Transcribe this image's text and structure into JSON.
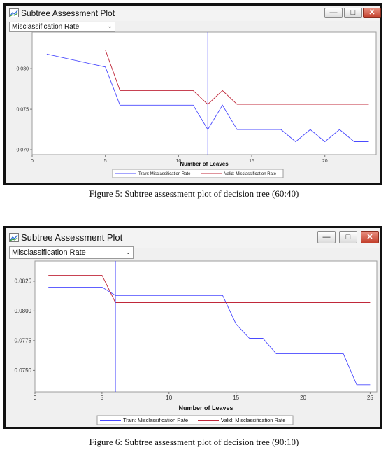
{
  "figures": [
    {
      "window_title": "Subtree Assessment Plot",
      "statistic_select": "Misclassification Rate",
      "icon": "chart-icon",
      "controls": [
        "minimize-icon",
        "maximize-icon",
        "close-icon"
      ],
      "caption": "Figure 5: Subtree assessment plot of decision tree (60:40)",
      "chart_data": {
        "type": "line",
        "xlabel": "Number of Leaves",
        "ylabel": "",
        "xlim": [
          0,
          23.5
        ],
        "ylim": [
          0.0694,
          0.0845
        ],
        "xticks": [
          0,
          5,
          10,
          15,
          20
        ],
        "yticks": [
          0.07,
          0.075,
          0.08
        ],
        "ytick_labels": [
          "0.070",
          "0.075",
          "0.080"
        ],
        "grid": false,
        "legend_position": "bottom",
        "selected_leaves": 12,
        "series": [
          {
            "name": "Train: Misclassification Rate",
            "color": "#4a4aff",
            "x": [
              1,
              5,
              6,
              7,
              8,
              9,
              10,
              11,
              12,
              13,
              14,
              15,
              16,
              17,
              18,
              19,
              20,
              21,
              22,
              23
            ],
            "y": [
              0.0818,
              0.0802,
              0.0755,
              0.0755,
              0.0755,
              0.0755,
              0.0755,
              0.0755,
              0.0725,
              0.0755,
              0.0725,
              0.0725,
              0.0725,
              0.0725,
              0.071,
              0.0725,
              0.071,
              0.0725,
              0.071,
              0.071
            ]
          },
          {
            "name": "Valid: Misclassification Rate",
            "color": "#c0283a",
            "x": [
              1,
              5,
              6,
              7,
              8,
              9,
              10,
              11,
              12,
              13,
              14,
              15,
              16,
              17,
              18,
              19,
              20,
              21,
              22,
              23
            ],
            "y": [
              0.0823,
              0.0823,
              0.0773,
              0.0773,
              0.0773,
              0.0773,
              0.0773,
              0.0773,
              0.0756,
              0.0773,
              0.0756,
              0.0756,
              0.0756,
              0.0756,
              0.0756,
              0.0756,
              0.0756,
              0.0756,
              0.0756,
              0.0756
            ]
          }
        ]
      }
    },
    {
      "window_title": "Subtree Assessment Plot",
      "statistic_select": "Misclassification Rate",
      "icon": "chart-icon",
      "controls": [
        "minimize-icon",
        "maximize-icon",
        "close-icon"
      ],
      "caption": "Figure 6: Subtree assessment plot of decision tree (90:10)",
      "chart_data": {
        "type": "line",
        "xlabel": "Number of Leaves",
        "ylabel": "",
        "xlim": [
          0,
          25.5
        ],
        "ylim": [
          0.0732,
          0.0842
        ],
        "xticks": [
          0,
          5,
          10,
          15,
          20,
          25
        ],
        "yticks": [
          0.075,
          0.0775,
          0.08,
          0.0825
        ],
        "ytick_labels": [
          "0.0750",
          "0.0775",
          "0.0800",
          "0.0825"
        ],
        "grid": false,
        "legend_position": "bottom",
        "selected_leaves": 6,
        "series": [
          {
            "name": "Train: Misclassification Rate",
            "color": "#4a4aff",
            "x": [
              1,
              5,
              6,
              14,
              15,
              16,
              17,
              18,
              23,
              24,
              25
            ],
            "y": [
              0.082,
              0.082,
              0.0813,
              0.0813,
              0.0789,
              0.0777,
              0.0777,
              0.0764,
              0.0764,
              0.0738,
              0.0738
            ]
          },
          {
            "name": "Valid: Misclassification Rate",
            "color": "#c0283a",
            "x": [
              1,
              5,
              6,
              25
            ],
            "y": [
              0.083,
              0.083,
              0.0807,
              0.0807
            ]
          }
        ]
      }
    }
  ]
}
